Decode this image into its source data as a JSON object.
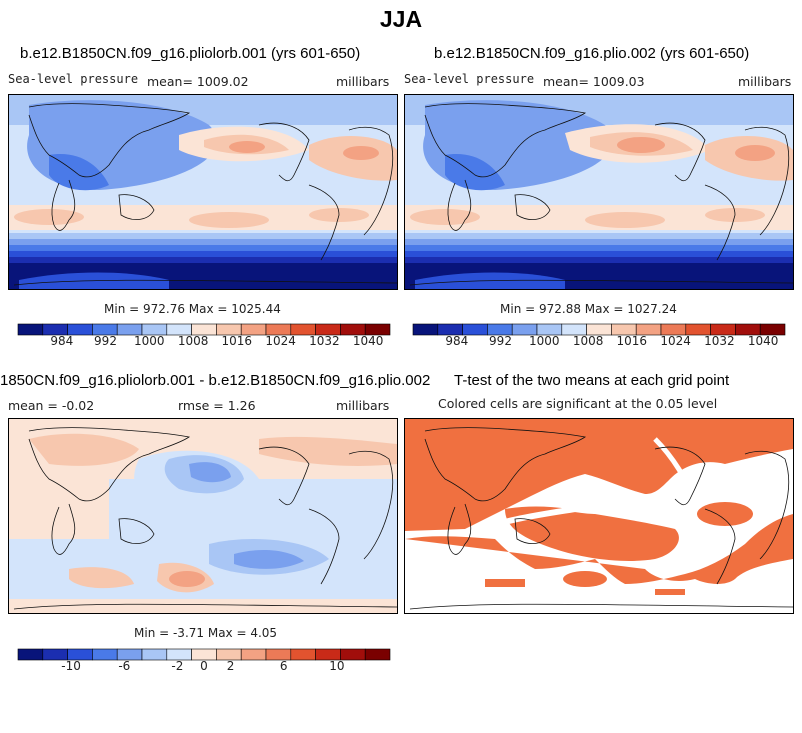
{
  "page": {
    "title": "JJA"
  },
  "panels": [
    {
      "id": "panel1",
      "title": "b.e12.B1850CN.f09_g16.pliolorb.001 (yrs 601-650)",
      "left_label": "Sea-level pressure",
      "center_label": "mean= 1009.02",
      "right_label": "millibars",
      "minmax": "Min = 972.76 Max = 1025.44"
    },
    {
      "id": "panel2",
      "title": "b.e12.B1850CN.f09_g16.plio.002 (yrs 601-650)",
      "left_label": "Sea-level pressure",
      "center_label": "mean= 1009.03",
      "right_label": "millibars",
      "minmax": "Min = 972.88 Max = 1027.24"
    },
    {
      "id": "panel3",
      "title": "1850CN.f09_g16.pliolorb.001 - b.e12.B1850CN.f09_g16.plio.002",
      "left_label": "mean =   -0.02",
      "center_label": "rmse =    1.26",
      "right_label": "millibars",
      "minmax": "Min =  -3.71 Max =   4.05"
    },
    {
      "id": "panel4",
      "title": "T-test of the two means at each grid point",
      "subtitle": "Colored cells are significant at the 0.05 level"
    }
  ],
  "colors": {
    "slp_scale": [
      "#08147a",
      "#1b2eb0",
      "#2a50d8",
      "#4a7ae8",
      "#7aa0ee",
      "#a9c6f5",
      "#d3e4fb",
      "#fbe4d6",
      "#f7c7ae",
      "#f3a283",
      "#ec7a57",
      "#e2532f",
      "#c92a18",
      "#a10e0b",
      "#7a0000"
    ],
    "diff_scale": [
      "#08147a",
      "#1b2eb0",
      "#2a50d8",
      "#4a7ae8",
      "#7aa0ee",
      "#a9c6f5",
      "#d3e4fb",
      "#fbe4d6",
      "#f7c7ae",
      "#f3a283",
      "#ec7a57",
      "#e2532f",
      "#c92a18",
      "#a10e0b",
      "#7a0000"
    ],
    "ttest": "#f07040"
  },
  "chart_data": [
    {
      "type": "heatmap",
      "name": "panel1",
      "title": "b.e12.B1850CN.f09_g16.pliolorb.001 (yrs 601-650)",
      "variable": "Sea-level pressure",
      "units": "millibars",
      "mean": 1009.02,
      "min": 972.76,
      "max": 1025.44,
      "colorbar_ticks": [
        984,
        992,
        1000,
        1008,
        1016,
        1024,
        1032,
        1040
      ],
      "colorbar_range": [
        976,
        1044
      ]
    },
    {
      "type": "heatmap",
      "name": "panel2",
      "title": "b.e12.B1850CN.f09_g16.plio.002 (yrs 601-650)",
      "variable": "Sea-level pressure",
      "units": "millibars",
      "mean": 1009.03,
      "min": 972.88,
      "max": 1027.24,
      "colorbar_ticks": [
        984,
        992,
        1000,
        1008,
        1016,
        1024,
        1032,
        1040
      ],
      "colorbar_range": [
        976,
        1044
      ]
    },
    {
      "type": "heatmap",
      "name": "panel3",
      "title": "1850CN.f09_g16.pliolorb.001 - b.e12.B1850CN.f09_g16.plio.002",
      "units": "millibars",
      "mean": -0.02,
      "rmse": 1.26,
      "min": -3.71,
      "max": 4.05,
      "colorbar_ticks": [
        -10,
        -6,
        -2,
        0,
        2,
        6,
        10
      ],
      "colorbar_range": [
        -14,
        14
      ]
    },
    {
      "type": "heatmap",
      "name": "panel4",
      "title": "T-test of the two means at each grid point",
      "subtitle": "Colored cells are significant at the 0.05 level",
      "significance_level": 0.05
    }
  ]
}
